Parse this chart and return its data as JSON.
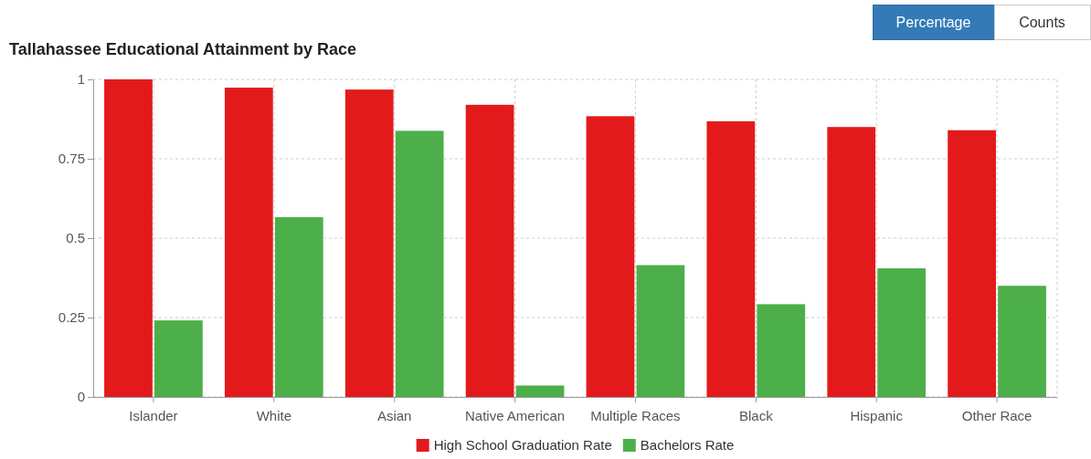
{
  "chart_data": {
    "type": "bar",
    "title": "Tallahassee Educational Attainment by Race",
    "categories": [
      "Islander",
      "White",
      "Asian",
      "Native American",
      "Multiple Races",
      "Black",
      "Hispanic",
      "Other Race"
    ],
    "series": [
      {
        "name": "High School Graduation Rate",
        "color": "#e31a1c",
        "values": [
          1.0,
          0.974,
          0.968,
          0.92,
          0.884,
          0.868,
          0.85,
          0.84
        ]
      },
      {
        "name": "Bachelors Rate",
        "color": "#4daf4a",
        "values": [
          0.241,
          0.566,
          0.838,
          0.036,
          0.415,
          0.292,
          0.405,
          0.35
        ]
      }
    ],
    "ylim": [
      0,
      1
    ],
    "yticks": [
      0,
      0.25,
      0.5,
      0.75,
      1
    ],
    "grid": true,
    "legend": "bottom",
    "annotations": [
      "Percentage",
      "Counts"
    ]
  }
}
